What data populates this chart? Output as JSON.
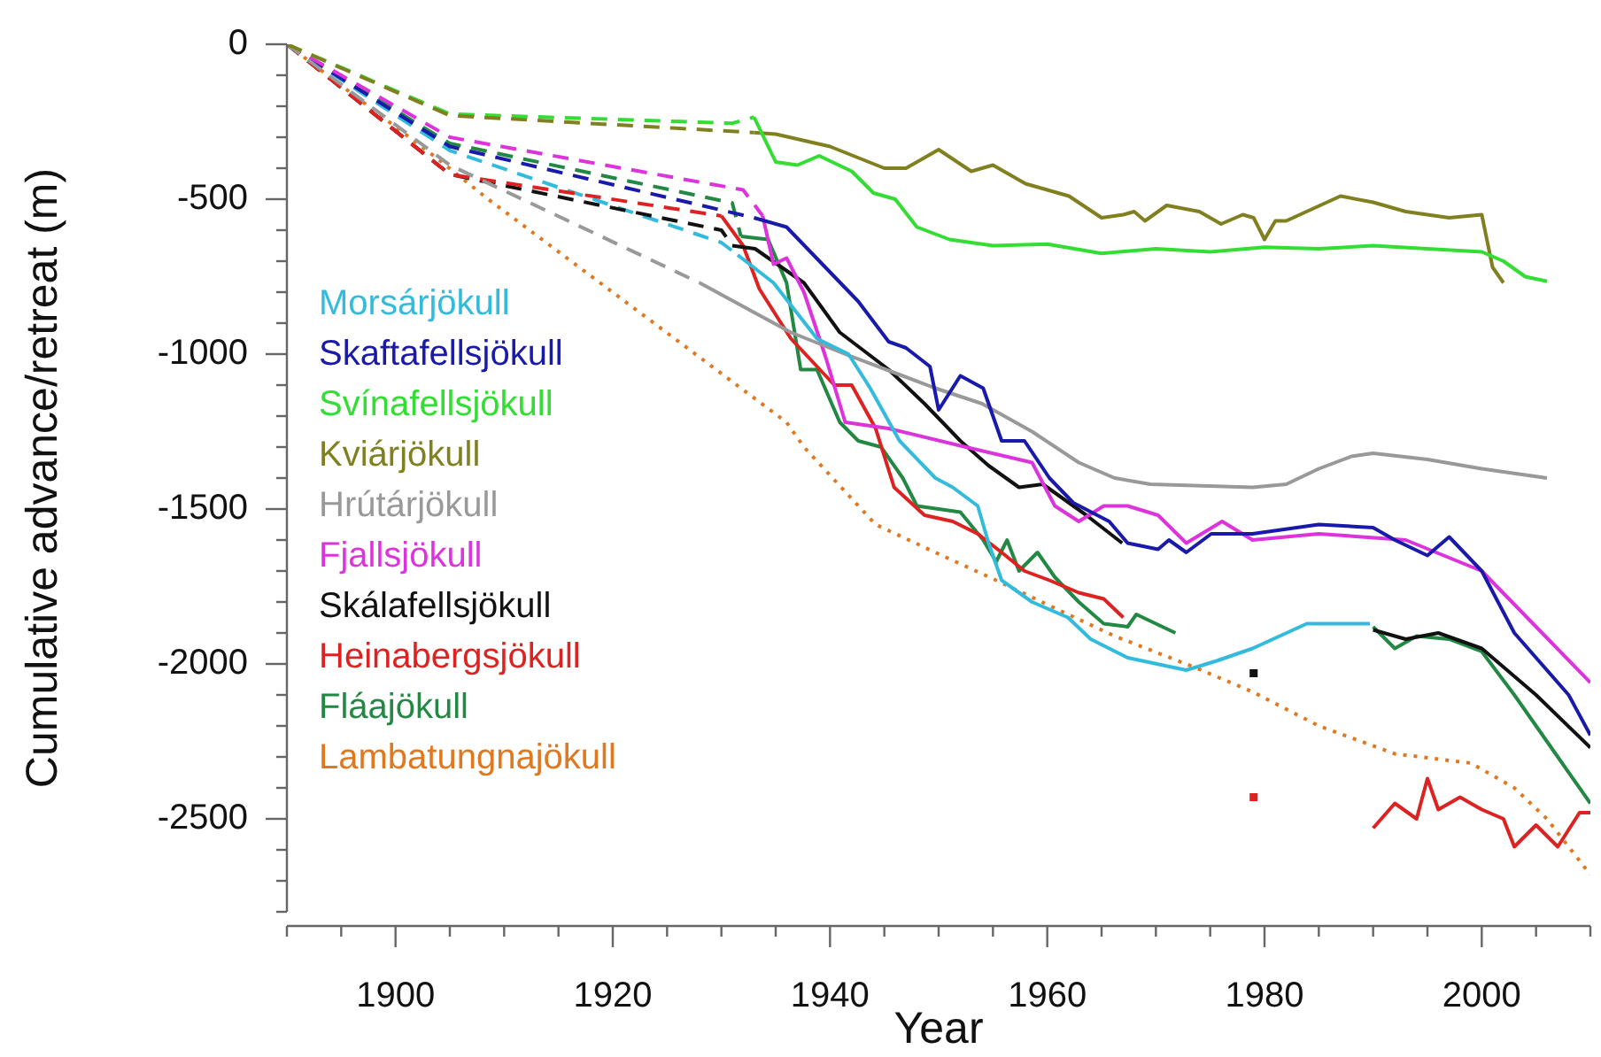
{
  "chart_data": {
    "type": "line",
    "xlabel": "Year",
    "ylabel": "Cumulative advance/retreat (m)",
    "xlim": [
      1890,
      2010
    ],
    "ylim": [
      -2800,
      0
    ],
    "xticks": [
      {
        "value": 1890,
        "label": null
      },
      {
        "value": 1895,
        "label": null
      },
      1900,
      {
        "value": 1905,
        "label": null
      },
      {
        "value": 1910,
        "label": null
      },
      {
        "value": 1915,
        "label": null
      },
      1920,
      {
        "value": 1925,
        "label": null
      },
      {
        "value": 1930,
        "label": null
      },
      {
        "value": 1935,
        "label": null
      },
      1940,
      {
        "value": 1945,
        "label": null
      },
      {
        "value": 1950,
        "label": null
      },
      {
        "value": 1955,
        "label": null
      },
      1960,
      {
        "value": 1965,
        "label": null
      },
      {
        "value": 1970,
        "label": null
      },
      {
        "value": 1975,
        "label": null
      },
      1980,
      {
        "value": 1985,
        "label": null
      },
      {
        "value": 1990,
        "label": null
      },
      {
        "value": 1995,
        "label": null
      },
      2000,
      {
        "value": 2005,
        "label": null
      },
      {
        "value": 2010,
        "label": null
      }
    ],
    "yticks": [
      0,
      {
        "value": -100,
        "label": null
      },
      {
        "value": -200,
        "label": null
      },
      {
        "value": -300,
        "label": null
      },
      {
        "value": -400,
        "label": null
      },
      -500,
      {
        "value": -600,
        "label": null
      },
      {
        "value": -700,
        "label": null
      },
      {
        "value": -800,
        "label": null
      },
      {
        "value": -900,
        "label": null
      },
      -1000,
      {
        "value": -1100,
        "label": null
      },
      {
        "value": -1200,
        "label": null
      },
      {
        "value": -1300,
        "label": null
      },
      {
        "value": -1400,
        "label": null
      },
      -1500,
      {
        "value": -1600,
        "label": null
      },
      {
        "value": -1700,
        "label": null
      },
      {
        "value": -1800,
        "label": null
      },
      {
        "value": -1900,
        "label": null
      },
      -2000,
      {
        "value": -2100,
        "label": null
      },
      {
        "value": -2200,
        "label": null
      },
      {
        "value": -2300,
        "label": null
      },
      {
        "value": -2400,
        "label": null
      },
      -2500,
      {
        "value": -2600,
        "label": null
      },
      {
        "value": -2700,
        "label": null
      },
      {
        "value": -2800,
        "label": null
      }
    ],
    "legend": "left",
    "series": [
      {
        "color": "#808020",
        "line_style": "dashed",
        "x": [
          1890,
          1905,
          1933
        ],
        "values": [
          0,
          -230,
          -285
        ]
      },
      {
        "color": "#33dd33",
        "line_style": "dashed",
        "x": [
          1890,
          1905,
          1931,
          1933
        ],
        "values": [
          0,
          -225,
          -255,
          -235
        ]
      },
      {
        "color": "#999999",
        "line_style": "dashed",
        "x": [
          1890,
          1905,
          1928
        ],
        "values": [
          0,
          -390,
          -770
        ]
      },
      {
        "color": "#dd33dd",
        "line_style": "dashed",
        "x": [
          1890,
          1905,
          1932,
          1933.8
        ],
        "values": [
          0,
          -300,
          -470,
          -554
        ]
      },
      {
        "color": "#1a1aaa",
        "line_style": "dashed",
        "x": [
          1890,
          1905,
          1933
        ],
        "values": [
          0,
          -330,
          -560
        ]
      },
      {
        "color": "#228844",
        "line_style": "dashed",
        "x": [
          1890,
          1905,
          1931,
          1931.8
        ],
        "values": [
          0,
          -320,
          -512,
          -620
        ]
      },
      {
        "color": "#dd2222",
        "line_style": "dashed",
        "x": [
          1890,
          1905,
          1930
        ],
        "values": [
          0,
          -420,
          -554
        ]
      },
      {
        "color": "#111111",
        "line_style": "dashed",
        "x": [
          1890,
          1905,
          1930,
          1931
        ],
        "values": [
          0,
          -420,
          -600,
          -650
        ]
      },
      {
        "color": "#33bbdd",
        "line_style": "dashed",
        "x": [
          1890,
          1905,
          1930,
          1931.5
        ],
        "values": [
          0,
          -343,
          -640,
          -680
        ]
      },
      {
        "name": "Morsárjökull",
        "color": "#33bbdd",
        "x": [
          1931.5,
          1934.8,
          1938.8,
          1941.7,
          1943.7,
          1946.4,
          1949.7,
          1951.3,
          1953.6,
          1954.6,
          1955.8,
          1958.6,
          1961.9,
          1964,
          1967.4,
          1972.8,
          1975.6,
          1978.9,
          1983.9,
          1989.7
        ],
        "values": [
          -680,
          -770,
          -950,
          -1000,
          -1110,
          -1280,
          -1400,
          -1430,
          -1490,
          -1610,
          -1730,
          -1800,
          -1850,
          -1920,
          -1980,
          -2020,
          -1990,
          -1950,
          -1870,
          -1870
        ]
      },
      {
        "name": "Skaftafellsjökull",
        "color": "#1a1aaa",
        "x": [
          1933,
          1936,
          1942.6,
          1945.4,
          1947,
          1949.2,
          1950,
          1952,
          1954.1,
          1955.8,
          1957.9,
          1960.2,
          1962.4,
          1965.7,
          1967.4,
          1970.2,
          1971.2,
          1972.8,
          1975.1,
          1978.9,
          1985,
          1990,
          1992,
          1995,
          1997,
          2000,
          2003,
          2008,
          2010
        ],
        "values": [
          -560,
          -590,
          -830,
          -960,
          -980,
          -1040,
          -1180,
          -1070,
          -1110,
          -1280,
          -1280,
          -1400,
          -1480,
          -1540,
          -1610,
          -1630,
          -1600,
          -1640,
          -1580,
          -1580,
          -1550,
          -1560,
          -1600,
          -1650,
          -1590,
          -1700,
          -1900,
          -2100,
          -2230
        ]
      },
      {
        "name": "Svínafellsjökull",
        "color": "#33dd33",
        "x": [
          1933,
          1935,
          1937,
          1939,
          1942,
          1944,
          1946,
          1948,
          1951,
          1955,
          1960,
          1965,
          1970,
          1975,
          1980,
          1985,
          1990,
          1995,
          2000,
          2002,
          2004,
          2006
        ],
        "values": [
          -235,
          -380,
          -390,
          -360,
          -410,
          -480,
          -500,
          -590,
          -630,
          -650,
          -645,
          -675,
          -660,
          -670,
          -655,
          -660,
          -650,
          -660,
          -670,
          -700,
          -750,
          -765
        ]
      },
      {
        "name": "Kviárjökull",
        "color": "#808020",
        "x": [
          1933,
          1935,
          1940,
          1945,
          1947,
          1950,
          1953,
          1955,
          1958,
          1962,
          1965,
          1967,
          1968,
          1969,
          1971,
          1974,
          1976,
          1978,
          1979,
          1980,
          1981,
          1982,
          1987,
          1990,
          1993,
          1997,
          2000,
          2001,
          2002
        ],
        "values": [
          -285,
          -290,
          -330,
          -400,
          -400,
          -340,
          -410,
          -390,
          -450,
          -490,
          -560,
          -550,
          -540,
          -570,
          -520,
          -540,
          -580,
          -550,
          -560,
          -630,
          -570,
          -570,
          -490,
          -510,
          -540,
          -560,
          -550,
          -720,
          -770
        ]
      },
      {
        "name": "Hrútárjökull",
        "color": "#999999",
        "x": [
          1928,
          1936.4,
          1941.4,
          1949.7,
          1954,
          1958.6,
          1962.9,
          1966.2,
          1969.5,
          1978.9,
          1982,
          1985,
          1988,
          1990,
          1995,
          2000,
          2006
        ],
        "values": [
          -770,
          -930,
          -1000,
          -1110,
          -1160,
          -1250,
          -1350,
          -1400,
          -1420,
          -1430,
          -1420,
          -1370,
          -1330,
          -1320,
          -1340,
          -1370,
          -1400
        ]
      },
      {
        "name": "Fjallsjökull",
        "color": "#dd33dd",
        "x": [
          1933.8,
          1934.8,
          1936,
          1937.6,
          1939.6,
          1941.4,
          1945.4,
          1952.5,
          1958.6,
          1960.7,
          1962.9,
          1965.2,
          1967.4,
          1970.2,
          1972.8,
          1976.1,
          1978.9,
          1985,
          1993,
          2000,
          2005,
          2010
        ],
        "values": [
          -554,
          -710,
          -690,
          -800,
          -1010,
          -1220,
          -1240,
          -1300,
          -1350,
          -1490,
          -1540,
          -1490,
          -1490,
          -1520,
          -1610,
          -1540,
          -1600,
          -1580,
          -1600,
          -1700,
          -1880,
          -2060
        ]
      },
      {
        "name": "Skálafellsjökull",
        "color": "#111111",
        "x": [
          1931,
          1933.1,
          1937.6,
          1940.9,
          1945.4,
          1948.7,
          1952,
          1954.6,
          1957.4,
          1959.6,
          1963.6,
          1966.9,
          1978,
          1990,
          1993,
          1996,
          2000,
          2005,
          2010
        ],
        "values": [
          -650,
          -660,
          -770,
          -930,
          -1050,
          -1160,
          -1280,
          -1360,
          -1430,
          -1420,
          -1520,
          -1610,
          null,
          -1890,
          -1920,
          -1900,
          -1950,
          -2100,
          -2270
        ]
      },
      {
        "name": "Heinabergsjökull",
        "color": "#dd2222",
        "x": [
          1930,
          1932,
          1933.5,
          1936.4,
          1938.8,
          1940.4,
          1942,
          1944.2,
          1945.9,
          1948.7,
          1951.3,
          1953.6,
          1955.8,
          1957.9,
          1960.2,
          1962.9,
          1965.2,
          1967
        ],
        "values": [
          -554,
          -650,
          -790,
          -950,
          -1040,
          -1100,
          -1100,
          -1240,
          -1430,
          -1520,
          -1540,
          -1580,
          -1640,
          -1700,
          -1730,
          -1770,
          -1790,
          -1850
        ]
      },
      {
        "name": "Fláajökull",
        "color": "#228844",
        "x": [
          1931.8,
          1934.3,
          1936,
          1937.3,
          1938.8,
          1940.9,
          1942.6,
          1944.7,
          1946.7,
          1948,
          1952,
          1954.1,
          1955.3,
          1956.3,
          1957.4,
          1959.1,
          1960.7,
          1962.9,
          1965.2,
          1967.4,
          1968.2,
          1971.8
        ],
        "values": [
          -620,
          -630,
          -770,
          -1050,
          -1050,
          -1220,
          -1280,
          -1300,
          -1400,
          -1490,
          -1510,
          -1600,
          -1670,
          -1600,
          -1700,
          -1640,
          -1720,
          -1800,
          -1870,
          -1880,
          -1840,
          -1900
        ]
      },
      {
        "name": "Lambatungnajökull",
        "color": "#e07820",
        "line_style": "dotted",
        "x": [
          1890,
          1904,
          1908.3,
          1936,
          1937.6,
          1944.2,
          1949.7,
          1955.3,
          1960.7,
          1966.2,
          1973.5,
          1978.9,
          1985,
          1992,
          1999,
          2003,
          2006,
          2010
        ],
        "values": [
          0,
          -373,
          -494,
          -1220,
          -1300,
          -1550,
          -1640,
          -1730,
          -1820,
          -1910,
          -2010,
          -2090,
          -2200,
          -2290,
          -2320,
          -2400,
          -2500,
          -2680
        ]
      },
      {
        "color": "#228844",
        "x": [
          1990,
          1992,
          1994,
          1997,
          2000,
          2003,
          2006,
          2010
        ],
        "values": [
          -1880,
          -1950,
          -1910,
          -1920,
          -1960,
          -2100,
          -2250,
          -2450
        ]
      },
      {
        "color": "#dd2222",
        "x": [
          1990,
          1992,
          1994,
          1995,
          1996,
          1998,
          2000,
          2002,
          2003,
          2005,
          2007,
          2009,
          2010
        ],
        "values": [
          -2530,
          -2450,
          -2500,
          -2370,
          -2470,
          -2430,
          -2470,
          -2500,
          -2590,
          -2520,
          -2590,
          -2480,
          -2480
        ]
      },
      {
        "type": "scatter",
        "marker": "square",
        "color": "#111111",
        "x": [
          1979
        ],
        "values": [
          -2030
        ]
      },
      {
        "type": "scatter",
        "marker": "square",
        "color": "#dd2222",
        "x": [
          1979
        ],
        "values": [
          -2430
        ]
      }
    ]
  }
}
